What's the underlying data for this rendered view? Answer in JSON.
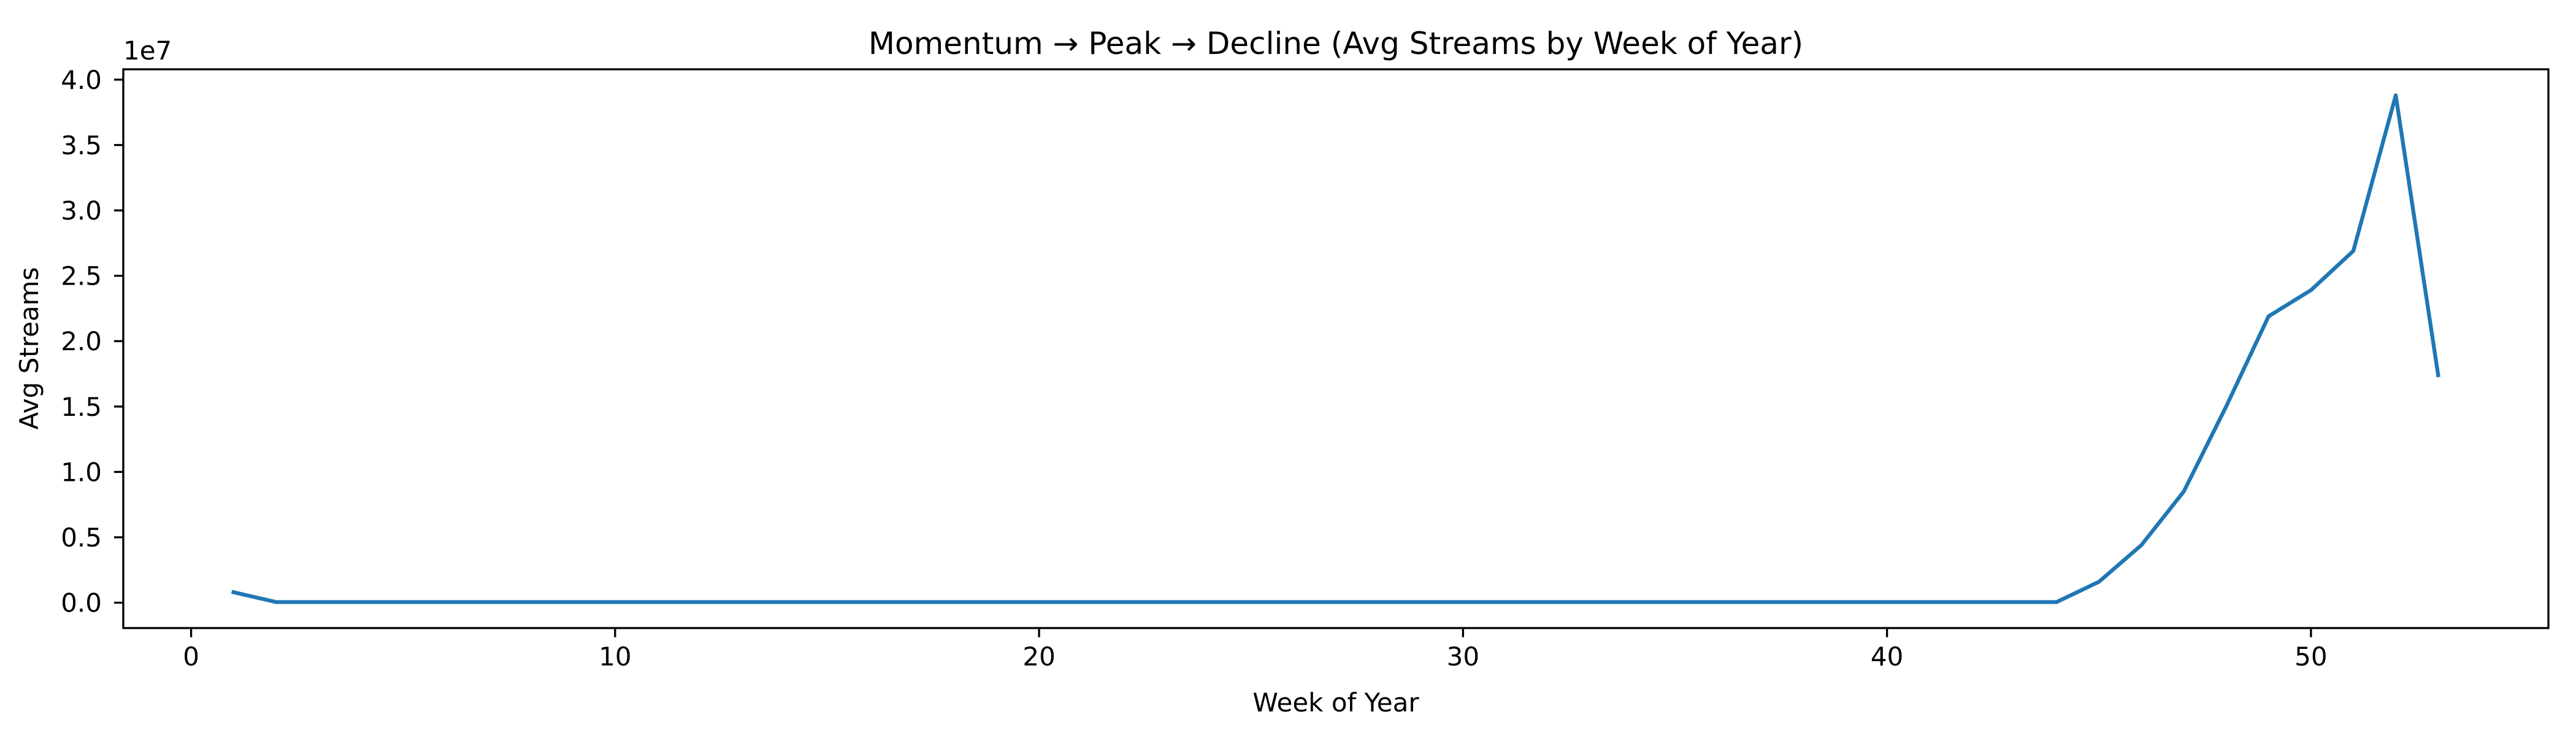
{
  "chart_data": {
    "type": "line",
    "title": "Momentum → Peak → Decline (Avg Streams by Week of Year)",
    "xlabel": "Week of Year",
    "ylabel": "Avg Streams",
    "offset_text": "1e7",
    "line_color": "#1f77b4",
    "axis_color": "#000000",
    "background": "#ffffff",
    "grid": false,
    "legend_position": "none",
    "xlim": [
      -1.6,
      55.6
    ],
    "ylim": [
      -1940000,
      40790000
    ],
    "x_ticks": [
      0,
      10,
      20,
      30,
      40,
      50
    ],
    "y_tick_values": [
      0,
      5000000,
      10000000,
      15000000,
      20000000,
      25000000,
      30000000,
      35000000,
      40000000
    ],
    "y_tick_labels": [
      "0.0",
      "0.5",
      "1.0",
      "1.5",
      "2.0",
      "2.5",
      "3.0",
      "3.5",
      "4.0"
    ],
    "x": [
      1,
      2,
      3,
      4,
      5,
      6,
      7,
      8,
      9,
      10,
      11,
      12,
      13,
      14,
      15,
      16,
      17,
      18,
      19,
      20,
      21,
      22,
      23,
      24,
      25,
      26,
      27,
      28,
      29,
      30,
      31,
      32,
      33,
      34,
      35,
      36,
      37,
      38,
      39,
      40,
      41,
      42,
      43,
      44,
      45,
      46,
      47,
      48,
      49,
      50,
      51,
      52,
      53
    ],
    "y": [
      800000,
      50000,
      50000,
      50000,
      50000,
      50000,
      50000,
      50000,
      50000,
      50000,
      50000,
      50000,
      50000,
      50000,
      50000,
      50000,
      50000,
      50000,
      50000,
      50000,
      50000,
      50000,
      50000,
      50000,
      50000,
      50000,
      50000,
      50000,
      50000,
      50000,
      50000,
      50000,
      50000,
      50000,
      50000,
      50000,
      50000,
      50000,
      50000,
      50000,
      50000,
      50000,
      50000,
      50000,
      1600000,
      4400000,
      8500000,
      15000000,
      21900000,
      23900000,
      26900000,
      38800000,
      17400000
    ]
  }
}
